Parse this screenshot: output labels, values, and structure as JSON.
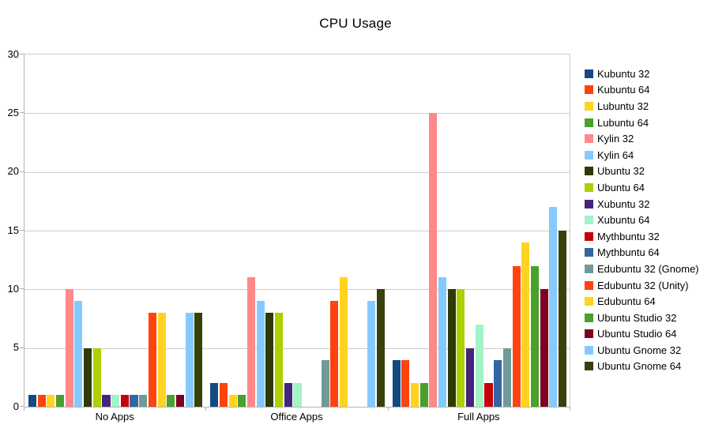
{
  "chart_data": {
    "type": "bar",
    "title": "CPU Usage",
    "xlabel": "",
    "ylabel": "",
    "categories": [
      "No Apps",
      "Office Apps",
      "Full Apps"
    ],
    "series": [
      {
        "name": "Kubuntu 32",
        "color": "#134a80",
        "values": [
          1,
          2,
          4
        ]
      },
      {
        "name": "Kubuntu 64",
        "color": "#ff420e",
        "values": [
          1,
          2,
          4
        ]
      },
      {
        "name": "Lubuntu 32",
        "color": "#ffd320",
        "values": [
          1,
          1,
          2
        ]
      },
      {
        "name": "Lubuntu 64",
        "color": "#4aa02c",
        "values": [
          1,
          1,
          2
        ]
      },
      {
        "name": "Kylin 32",
        "color": "#ff8888",
        "values": [
          10,
          11,
          25
        ]
      },
      {
        "name": "Kylin 64",
        "color": "#85caff",
        "values": [
          9,
          9,
          11
        ]
      },
      {
        "name": "Ubuntu 32",
        "color": "#2e3b06",
        "values": [
          5,
          8,
          10
        ]
      },
      {
        "name": "Ubuntu 64",
        "color": "#aecf00",
        "values": [
          5,
          8,
          10
        ]
      },
      {
        "name": "Xubuntu 32",
        "color": "#44257d",
        "values": [
          1,
          2,
          5
        ]
      },
      {
        "name": "Xubuntu 64",
        "color": "#a2f3c5",
        "values": [
          1,
          2,
          7
        ]
      },
      {
        "name": "Mythbuntu 32",
        "color": "#c5000b",
        "values": [
          1,
          0,
          2
        ]
      },
      {
        "name": "Mythbuntu 64",
        "color": "#3465a4",
        "values": [
          1,
          0,
          4
        ]
      },
      {
        "name": "Edubuntu 32 (Gnome)",
        "color": "#6f9a9a",
        "values": [
          1,
          4,
          5
        ]
      },
      {
        "name": "Edubuntu 32 (Unity)",
        "color": "#ff420e",
        "values": [
          8,
          9,
          12
        ]
      },
      {
        "name": "Edubuntu 64",
        "color": "#ffd320",
        "values": [
          8,
          11,
          14
        ]
      },
      {
        "name": "Ubuntu Studio 32",
        "color": "#4aa02c",
        "values": [
          1,
          0,
          12
        ]
      },
      {
        "name": "Ubuntu Studio 64",
        "color": "#7e0021",
        "values": [
          1,
          0,
          10
        ]
      },
      {
        "name": "Ubuntu Gnome 32",
        "color": "#85caff",
        "values": [
          8,
          9,
          17
        ]
      },
      {
        "name": "Ubuntu Gnome 64",
        "color": "#36420a",
        "values": [
          8,
          10,
          15
        ]
      }
    ],
    "ylim": [
      0,
      30
    ],
    "yticks": [
      0,
      5,
      10,
      15,
      20,
      25,
      30
    ],
    "grid": "horizontal",
    "legend_position": "right"
  },
  "colors": {
    "background": "#ffffff",
    "gridline": "#cdcdcd",
    "axis": "#b3b3b3",
    "text": "#000000"
  }
}
